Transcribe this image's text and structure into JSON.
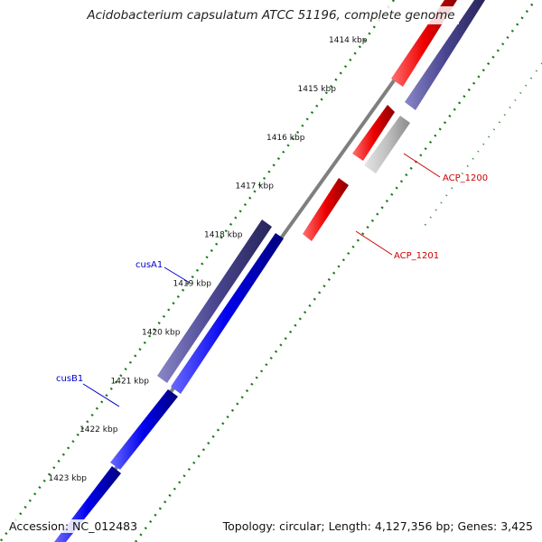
{
  "title": "Acidobacterium capsulatum ATCC 51196, complete genome",
  "accession": "Accession: NC_012483",
  "summary": "Topology: circular; Length: 4,127,356 bp; Genes: 3,425",
  "colors": {
    "backbone": "#7f7f7f",
    "tick": "#1a7a1a",
    "forward_cds": "#0000ee",
    "reverse_cds": "#e00000",
    "orthologs_dark": "#4a4690",
    "orthologs_gray": "#c0c0c0",
    "label_blue": "#0000cc",
    "label_red": "#cc0000"
  },
  "ticks": [
    {
      "label": "1414 kbp",
      "kbp": 1414
    },
    {
      "label": "1415 kbp",
      "kbp": 1415
    },
    {
      "label": "1416 kbp",
      "kbp": 1416
    },
    {
      "label": "1417 kbp",
      "kbp": 1417
    },
    {
      "label": "1418 kbp",
      "kbp": 1418
    },
    {
      "label": "1419 kbp",
      "kbp": 1419
    },
    {
      "label": "1420 kbp",
      "kbp": 1420
    },
    {
      "label": "1421 kbp",
      "kbp": 1421
    },
    {
      "label": "1422 kbp",
      "kbp": 1422
    },
    {
      "label": "1423 kbp",
      "kbp": 1423
    }
  ],
  "genes": [
    {
      "name": "cusA1",
      "strand": "forward",
      "start_kbp": 1417.9,
      "end_kbp": 1421.2
    },
    {
      "name": "cusB1",
      "strand": "forward",
      "start_kbp": 1421.2,
      "end_kbp": 1423.0
    },
    {
      "name": "ACP_1200",
      "strand": "reverse",
      "start_kbp": 1415.3,
      "end_kbp": 1416.5
    },
    {
      "name": "ACP_1201",
      "strand": "reverse",
      "start_kbp": 1416.8,
      "end_kbp": 1418.0
    }
  ]
}
